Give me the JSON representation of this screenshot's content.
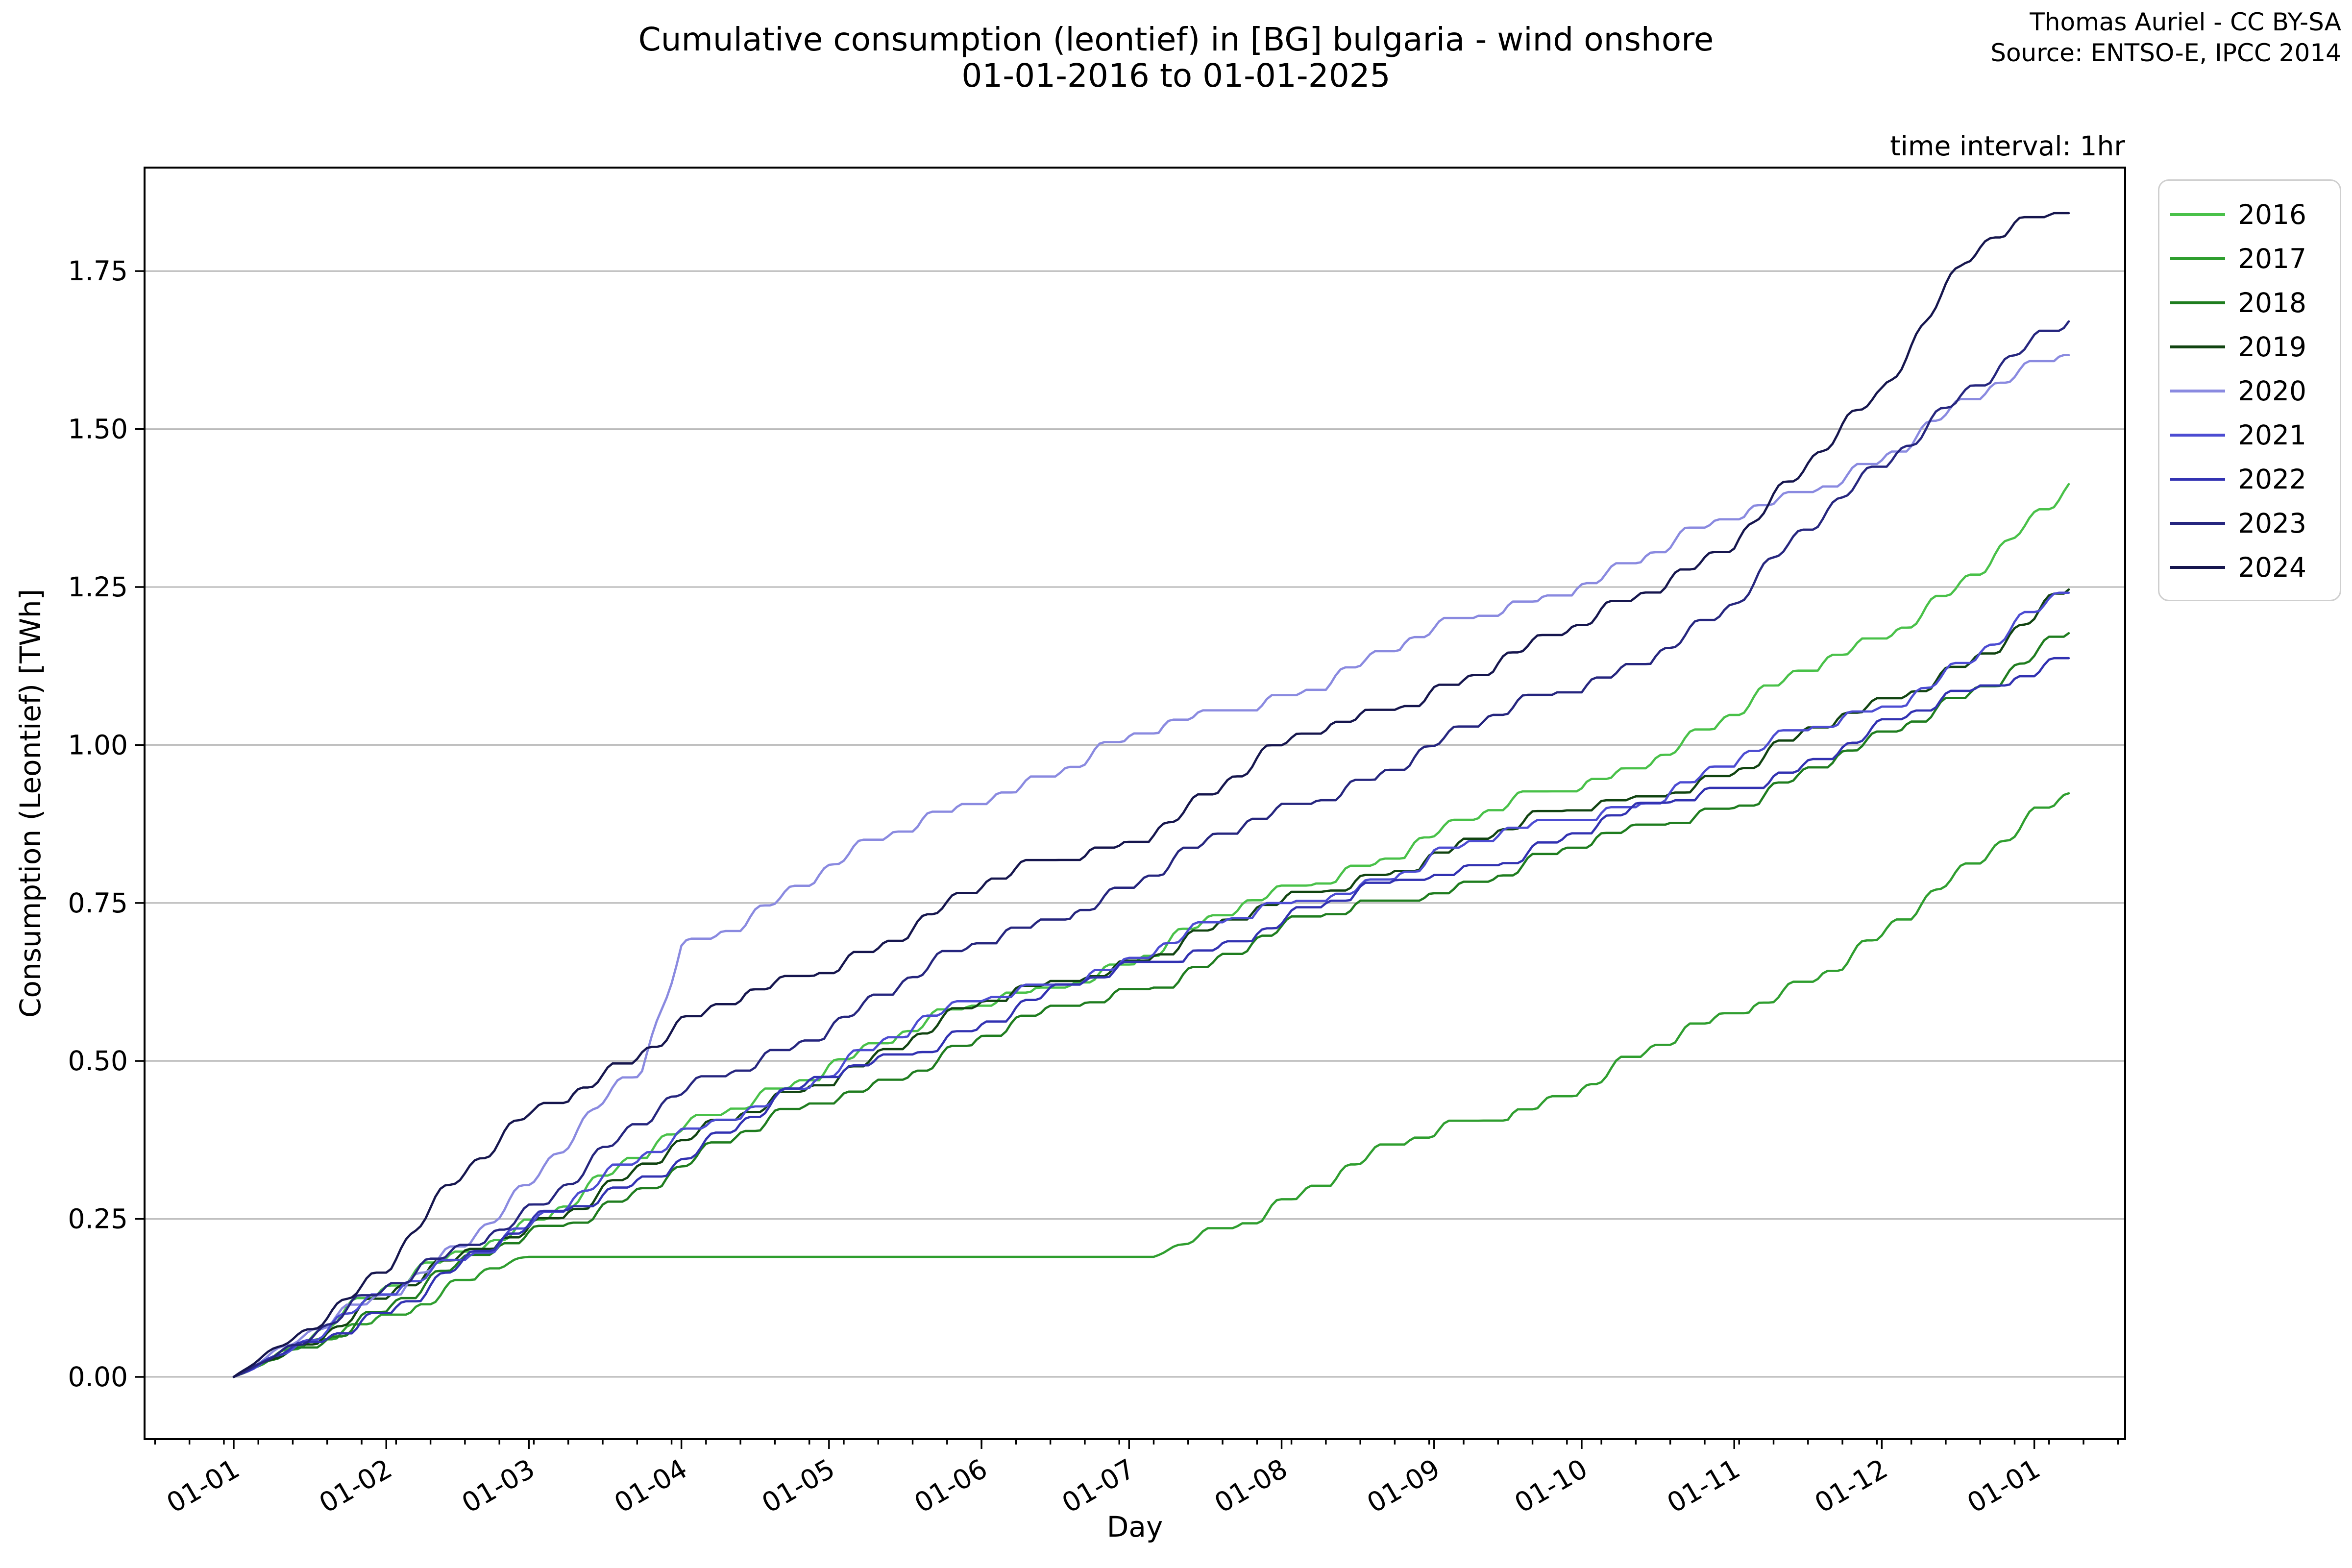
{
  "attribution": {
    "line1": "Thomas Auriel - CC BY-SA",
    "line2": "Source: ENTSO-E, IPCC 2014"
  },
  "annotations": {
    "time_interval": "time interval: 1hr"
  },
  "legend": {
    "position": "upper-right-outside"
  },
  "chart_data": {
    "type": "line",
    "title": "Cumulative consumption (leontief) in [BG] bulgaria - wind onshore",
    "subtitle": "01-01-2016 to 01-01-2025",
    "xlabel": "Day",
    "ylabel": "Consumption (Leontief) [TWh]",
    "x_unit": "day-of-year (all years overlaid Jan 1 → Jan 1)",
    "x_tick_labels": [
      "01-01",
      "01-02",
      "01-03",
      "01-04",
      "01-05",
      "01-06",
      "01-07",
      "01-08",
      "01-09",
      "01-10",
      "01-11",
      "01-12",
      "01-01"
    ],
    "x_tick_days": [
      0,
      31,
      60,
      91,
      121,
      152,
      182,
      213,
      244,
      274,
      305,
      335,
      366
    ],
    "x_minor_tick_interval_days": 7,
    "xlim_days": [
      -18.1,
      384.5
    ],
    "ylim": [
      -0.098,
      1.914
    ],
    "y_ticks": [
      0.0,
      0.25,
      0.5,
      0.75,
      1.0,
      1.25,
      1.5,
      1.75
    ],
    "grid": "horizontal-only",
    "grid_color": "#b9b9b9",
    "legend_position": "upper right outside plot",
    "series": [
      {
        "name": "2016",
        "color": "#49c149",
        "anchors": [
          [
            0,
            0
          ],
          [
            31,
            0.13
          ],
          [
            60,
            0.25
          ],
          [
            91,
            0.38
          ],
          [
            121,
            0.5
          ],
          [
            152,
            0.58
          ],
          [
            182,
            0.66
          ],
          [
            213,
            0.76
          ],
          [
            244,
            0.86
          ],
          [
            274,
            0.93
          ],
          [
            305,
            1.05
          ],
          [
            335,
            1.17
          ],
          [
            352,
            1.27
          ],
          [
            366,
            1.35
          ],
          [
            373,
            1.4
          ]
        ]
      },
      {
        "name": "2017",
        "color": "#2f9e2f",
        "flat_segment": {
          "from_day": 60,
          "to_day": 187,
          "value": 0.19,
          "note": "data gap - curve stays flat"
        },
        "anchors": [
          [
            0,
            0
          ],
          [
            31,
            0.1
          ],
          [
            52,
            0.17
          ],
          [
            60,
            0.19
          ],
          [
            187,
            0.19
          ],
          [
            213,
            0.28
          ],
          [
            244,
            0.38
          ],
          [
            274,
            0.46
          ],
          [
            305,
            0.57
          ],
          [
            335,
            0.7
          ],
          [
            352,
            0.79
          ],
          [
            366,
            0.89
          ],
          [
            373,
            0.93
          ]
        ]
      },
      {
        "name": "2018",
        "color": "#1f7d1f",
        "anchors": [
          [
            0,
            0
          ],
          [
            31,
            0.11
          ],
          [
            60,
            0.22
          ],
          [
            91,
            0.33
          ],
          [
            121,
            0.44
          ],
          [
            152,
            0.53
          ],
          [
            182,
            0.61
          ],
          [
            213,
            0.7
          ],
          [
            244,
            0.77
          ],
          [
            274,
            0.83
          ],
          [
            305,
            0.91
          ],
          [
            335,
            1.0
          ],
          [
            366,
            1.15
          ],
          [
            373,
            1.19
          ]
        ]
      },
      {
        "name": "2019",
        "color": "#114411",
        "anchors": [
          [
            0,
            0
          ],
          [
            31,
            0.12
          ],
          [
            60,
            0.24
          ],
          [
            91,
            0.36
          ],
          [
            121,
            0.48
          ],
          [
            152,
            0.58
          ],
          [
            182,
            0.66
          ],
          [
            213,
            0.74
          ],
          [
            244,
            0.83
          ],
          [
            274,
            0.89
          ],
          [
            305,
            0.96
          ],
          [
            335,
            1.06
          ],
          [
            366,
            1.2
          ],
          [
            373,
            1.25
          ]
        ]
      },
      {
        "name": "2020",
        "color": "#8a8ae0",
        "anchors": [
          [
            0,
            0
          ],
          [
            31,
            0.13
          ],
          [
            60,
            0.3
          ],
          [
            83,
            0.49
          ],
          [
            91,
            0.68
          ],
          [
            96,
            0.7
          ],
          [
            121,
            0.8
          ],
          [
            152,
            0.92
          ],
          [
            182,
            1.0
          ],
          [
            213,
            1.08
          ],
          [
            244,
            1.17
          ],
          [
            274,
            1.26
          ],
          [
            305,
            1.35
          ],
          [
            335,
            1.46
          ],
          [
            351,
            1.53
          ],
          [
            366,
            1.59
          ],
          [
            373,
            1.62
          ]
        ]
      },
      {
        "name": "2021",
        "color": "#4c4cd2",
        "anchors": [
          [
            0,
            0
          ],
          [
            31,
            0.12
          ],
          [
            60,
            0.25
          ],
          [
            91,
            0.37
          ],
          [
            121,
            0.49
          ],
          [
            152,
            0.59
          ],
          [
            182,
            0.66
          ],
          [
            213,
            0.74
          ],
          [
            244,
            0.82
          ],
          [
            274,
            0.88
          ],
          [
            305,
            0.97
          ],
          [
            335,
            1.06
          ],
          [
            366,
            1.2
          ],
          [
            373,
            1.24
          ]
        ]
      },
      {
        "name": "2022",
        "color": "#3232b2",
        "anchors": [
          [
            0,
            0
          ],
          [
            31,
            0.11
          ],
          [
            60,
            0.23
          ],
          [
            91,
            0.35
          ],
          [
            121,
            0.47
          ],
          [
            152,
            0.56
          ],
          [
            182,
            0.64
          ],
          [
            213,
            0.72
          ],
          [
            244,
            0.79
          ],
          [
            274,
            0.86
          ],
          [
            305,
            0.93
          ],
          [
            335,
            1.02
          ],
          [
            366,
            1.12
          ],
          [
            373,
            1.15
          ]
        ]
      },
      {
        "name": "2023",
        "color": "#26267f",
        "anchors": [
          [
            0,
            0
          ],
          [
            31,
            0.13
          ],
          [
            60,
            0.27
          ],
          [
            91,
            0.44
          ],
          [
            121,
            0.56
          ],
          [
            152,
            0.68
          ],
          [
            182,
            0.78
          ],
          [
            213,
            0.89
          ],
          [
            244,
            1.0
          ],
          [
            274,
            1.09
          ],
          [
            305,
            1.22
          ],
          [
            335,
            1.45
          ],
          [
            351,
            1.56
          ],
          [
            366,
            1.63
          ],
          [
            373,
            1.66
          ]
        ]
      },
      {
        "name": "2024",
        "color": "#16164e",
        "anchors": [
          [
            0,
            0
          ],
          [
            31,
            0.17
          ],
          [
            45,
            0.3
          ],
          [
            60,
            0.42
          ],
          [
            91,
            0.55
          ],
          [
            121,
            0.65
          ],
          [
            152,
            0.77
          ],
          [
            182,
            0.85
          ],
          [
            213,
            0.99
          ],
          [
            244,
            1.09
          ],
          [
            274,
            1.18
          ],
          [
            305,
            1.33
          ],
          [
            335,
            1.55
          ],
          [
            352,
            1.78
          ],
          [
            358,
            1.82
          ],
          [
            366,
            1.835
          ],
          [
            373,
            1.84
          ]
        ]
      }
    ]
  }
}
